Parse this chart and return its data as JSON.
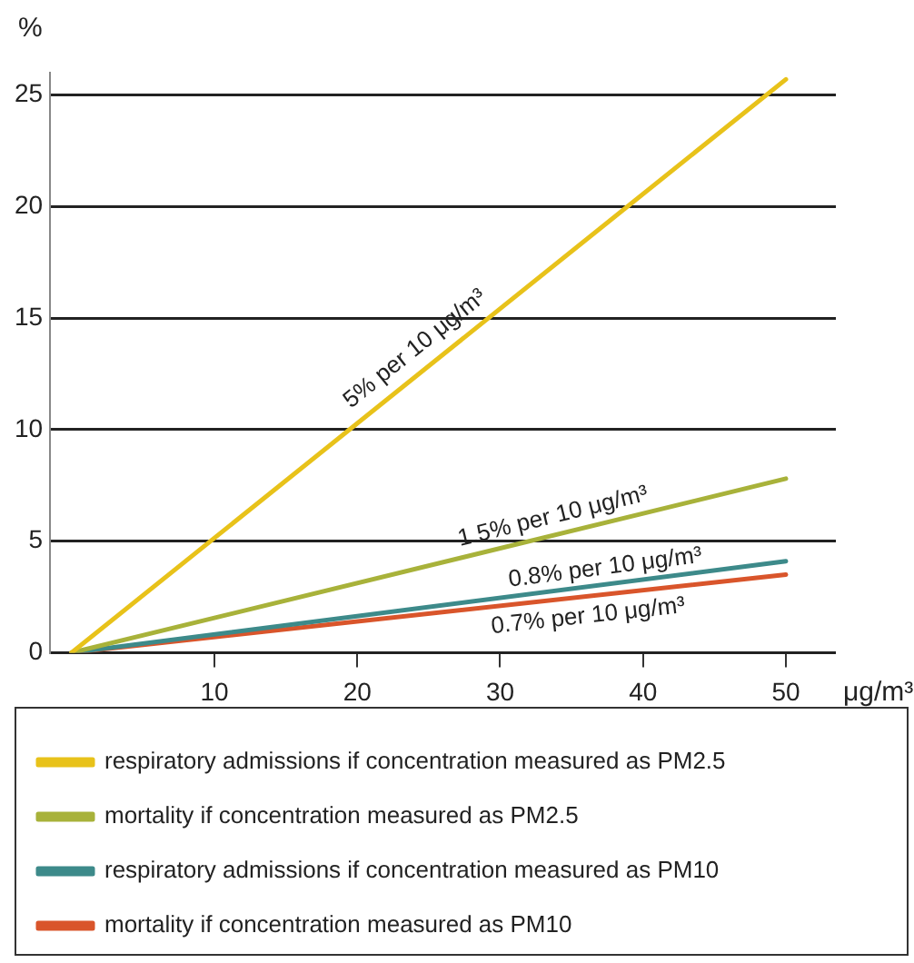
{
  "chart_data": {
    "type": "line",
    "xlabel": "μg/m³",
    "ylabel": "%",
    "x": [
      0,
      50
    ],
    "series": [
      {
        "name": "respiratory admissions if concentration measured as PM2.5",
        "color": "#e8c21a",
        "values": [
          0,
          25.7
        ]
      },
      {
        "name": "mortality if concentration measured as PM2.5",
        "color": "#a8b23a",
        "values": [
          0,
          7.8
        ]
      },
      {
        "name": "respiratory admissions if concentration measured as PM10",
        "color": "#3d8a8a",
        "values": [
          0,
          4.1
        ]
      },
      {
        "name": "mortality if concentration measured as PM10",
        "color": "#d9552b",
        "values": [
          0,
          3.5
        ]
      }
    ],
    "xlim": [
      -1.5,
      53.5
    ],
    "xticks": [
      10,
      20,
      30,
      40,
      50
    ],
    "ylim": [
      0,
      26
    ],
    "yticks": [
      0,
      5,
      10,
      15,
      20,
      25
    ],
    "grid": "y",
    "legend": "bottom",
    "marker": "none",
    "annotations": [
      "5% per 10 μg/m³",
      "1.5% per 10 μg/m³",
      "0.8% per 10 μg/m³",
      "0.7% per 10 μg/m³"
    ]
  }
}
